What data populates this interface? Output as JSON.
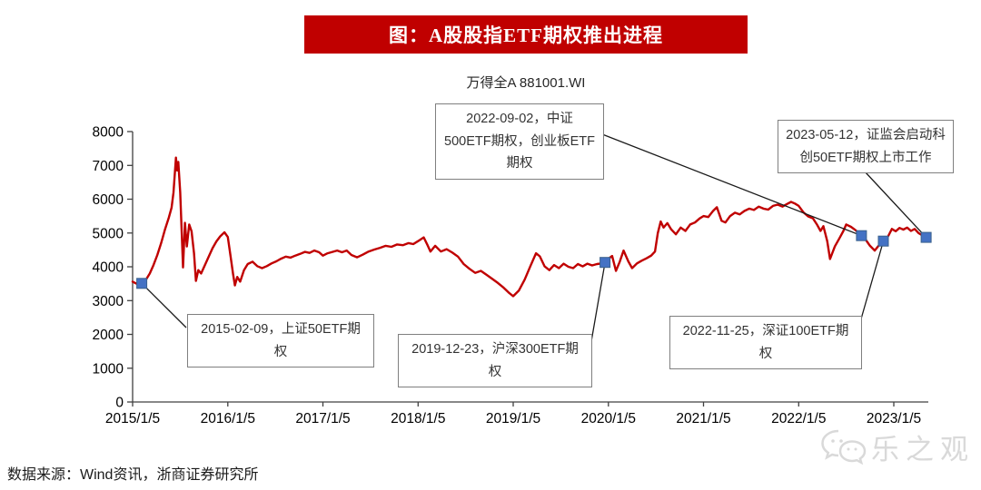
{
  "banner": {
    "title": "图：A股股指ETF期权推出进程",
    "bg_color": "#C00000",
    "text_color": "#FFFFFF"
  },
  "source_note": "数据来源：Wind资讯，浙商证券研究所",
  "watermark_text": "乐之观",
  "chart_data": {
    "type": "line",
    "title": "万得全A 881001.WI",
    "xlabel": "",
    "ylabel": "",
    "ylim": [
      0,
      8000
    ],
    "grid": false,
    "legend": "none",
    "line_color": "#C00000",
    "marker_color": "#4472C4",
    "marker_border_color": "#3A618C",
    "axis_color": "#404040",
    "yticks": [
      0,
      1000,
      2000,
      3000,
      4000,
      5000,
      6000,
      7000,
      8000
    ],
    "xticks": [
      "2015/1/5",
      "2016/1/5",
      "2017/1/5",
      "2018/1/5",
      "2019/1/5",
      "2020/1/5",
      "2021/1/5",
      "2022/1/5",
      "2023/1/5"
    ],
    "x_unit": "years since 2015/1/5",
    "series": [
      {
        "name": "万得全A 881001.WI",
        "color": "#C00000",
        "points": [
          [
            0.0,
            3560
          ],
          [
            0.04,
            3500
          ],
          [
            0.096,
            3510
          ],
          [
            0.14,
            3620
          ],
          [
            0.18,
            3800
          ],
          [
            0.22,
            4050
          ],
          [
            0.26,
            4350
          ],
          [
            0.3,
            4700
          ],
          [
            0.34,
            5100
          ],
          [
            0.38,
            5450
          ],
          [
            0.41,
            5750
          ],
          [
            0.43,
            6200
          ],
          [
            0.455,
            7230
          ],
          [
            0.468,
            6850
          ],
          [
            0.48,
            7100
          ],
          [
            0.5,
            6200
          ],
          [
            0.52,
            4700
          ],
          [
            0.53,
            3980
          ],
          [
            0.55,
            5300
          ],
          [
            0.57,
            4600
          ],
          [
            0.595,
            5250
          ],
          [
            0.62,
            5050
          ],
          [
            0.645,
            4400
          ],
          [
            0.665,
            3580
          ],
          [
            0.69,
            3900
          ],
          [
            0.72,
            3800
          ],
          [
            0.76,
            4050
          ],
          [
            0.8,
            4300
          ],
          [
            0.84,
            4550
          ],
          [
            0.88,
            4750
          ],
          [
            0.92,
            4900
          ],
          [
            0.965,
            5020
          ],
          [
            1.0,
            4880
          ],
          [
            1.03,
            4300
          ],
          [
            1.055,
            3800
          ],
          [
            1.075,
            3450
          ],
          [
            1.1,
            3700
          ],
          [
            1.13,
            3560
          ],
          [
            1.17,
            3900
          ],
          [
            1.21,
            4080
          ],
          [
            1.26,
            4150
          ],
          [
            1.31,
            4020
          ],
          [
            1.36,
            3960
          ],
          [
            1.41,
            4020
          ],
          [
            1.46,
            4100
          ],
          [
            1.51,
            4160
          ],
          [
            1.56,
            4240
          ],
          [
            1.61,
            4300
          ],
          [
            1.66,
            4270
          ],
          [
            1.71,
            4330
          ],
          [
            1.76,
            4380
          ],
          [
            1.81,
            4440
          ],
          [
            1.86,
            4410
          ],
          [
            1.91,
            4480
          ],
          [
            1.96,
            4430
          ],
          [
            2.0,
            4330
          ],
          [
            2.05,
            4400
          ],
          [
            2.1,
            4440
          ],
          [
            2.15,
            4480
          ],
          [
            2.2,
            4430
          ],
          [
            2.25,
            4480
          ],
          [
            2.3,
            4350
          ],
          [
            2.36,
            4280
          ],
          [
            2.42,
            4360
          ],
          [
            2.48,
            4450
          ],
          [
            2.54,
            4510
          ],
          [
            2.6,
            4560
          ],
          [
            2.66,
            4620
          ],
          [
            2.72,
            4590
          ],
          [
            2.78,
            4660
          ],
          [
            2.84,
            4640
          ],
          [
            2.9,
            4700
          ],
          [
            2.95,
            4670
          ],
          [
            3.0,
            4760
          ],
          [
            3.06,
            4870
          ],
          [
            3.1,
            4640
          ],
          [
            3.13,
            4450
          ],
          [
            3.18,
            4620
          ],
          [
            3.24,
            4450
          ],
          [
            3.3,
            4520
          ],
          [
            3.36,
            4420
          ],
          [
            3.42,
            4300
          ],
          [
            3.48,
            4080
          ],
          [
            3.54,
            3940
          ],
          [
            3.6,
            3820
          ],
          [
            3.66,
            3880
          ],
          [
            3.72,
            3760
          ],
          [
            3.78,
            3640
          ],
          [
            3.84,
            3520
          ],
          [
            3.9,
            3380
          ],
          [
            3.96,
            3220
          ],
          [
            4.0,
            3130
          ],
          [
            4.06,
            3300
          ],
          [
            4.12,
            3620
          ],
          [
            4.18,
            4020
          ],
          [
            4.24,
            4400
          ],
          [
            4.28,
            4310
          ],
          [
            4.33,
            4010
          ],
          [
            4.38,
            3900
          ],
          [
            4.43,
            4050
          ],
          [
            4.48,
            3960
          ],
          [
            4.53,
            4090
          ],
          [
            4.58,
            4000
          ],
          [
            4.63,
            3960
          ],
          [
            4.68,
            4080
          ],
          [
            4.73,
            4010
          ],
          [
            4.78,
            4090
          ],
          [
            4.83,
            4040
          ],
          [
            4.88,
            4080
          ],
          [
            4.93,
            4100
          ],
          [
            4.965,
            4130
          ],
          [
            5.0,
            4240
          ],
          [
            5.04,
            4320
          ],
          [
            5.08,
            3880
          ],
          [
            5.12,
            4150
          ],
          [
            5.16,
            4480
          ],
          [
            5.21,
            4160
          ],
          [
            5.25,
            3960
          ],
          [
            5.3,
            4100
          ],
          [
            5.35,
            4180
          ],
          [
            5.4,
            4250
          ],
          [
            5.45,
            4330
          ],
          [
            5.49,
            4450
          ],
          [
            5.52,
            5000
          ],
          [
            5.55,
            5340
          ],
          [
            5.58,
            5160
          ],
          [
            5.62,
            5290
          ],
          [
            5.66,
            5110
          ],
          [
            5.71,
            4960
          ],
          [
            5.76,
            5160
          ],
          [
            5.81,
            5060
          ],
          [
            5.86,
            5250
          ],
          [
            5.91,
            5310
          ],
          [
            5.96,
            5430
          ],
          [
            6.0,
            5500
          ],
          [
            6.05,
            5470
          ],
          [
            6.1,
            5650
          ],
          [
            6.14,
            5760
          ],
          [
            6.19,
            5360
          ],
          [
            6.23,
            5310
          ],
          [
            6.28,
            5500
          ],
          [
            6.33,
            5600
          ],
          [
            6.38,
            5550
          ],
          [
            6.43,
            5650
          ],
          [
            6.48,
            5720
          ],
          [
            6.53,
            5680
          ],
          [
            6.58,
            5780
          ],
          [
            6.63,
            5720
          ],
          [
            6.68,
            5690
          ],
          [
            6.73,
            5800
          ],
          [
            6.78,
            5840
          ],
          [
            6.83,
            5780
          ],
          [
            6.88,
            5860
          ],
          [
            6.92,
            5920
          ],
          [
            6.96,
            5870
          ],
          [
            7.0,
            5800
          ],
          [
            7.05,
            5610
          ],
          [
            7.1,
            5490
          ],
          [
            7.15,
            5430
          ],
          [
            7.19,
            5260
          ],
          [
            7.23,
            5060
          ],
          [
            7.26,
            5200
          ],
          [
            7.3,
            4760
          ],
          [
            7.33,
            4230
          ],
          [
            7.38,
            4600
          ],
          [
            7.43,
            4850
          ],
          [
            7.47,
            5060
          ],
          [
            7.5,
            5250
          ],
          [
            7.55,
            5180
          ],
          [
            7.6,
            5080
          ],
          [
            7.63,
            4990
          ],
          [
            7.66,
            4920
          ],
          [
            7.7,
            4820
          ],
          [
            7.75,
            4620
          ],
          [
            7.8,
            4480
          ],
          [
            7.84,
            4620
          ],
          [
            7.89,
            4760
          ],
          [
            7.94,
            4900
          ],
          [
            7.98,
            5120
          ],
          [
            8.02,
            5050
          ],
          [
            8.06,
            5150
          ],
          [
            8.1,
            5100
          ],
          [
            8.14,
            5160
          ],
          [
            8.18,
            5060
          ],
          [
            8.22,
            5120
          ],
          [
            8.26,
            5000
          ],
          [
            8.3,
            4930
          ],
          [
            8.34,
            4870
          ],
          [
            8.36,
            4900
          ]
        ]
      }
    ],
    "events": [
      {
        "date": "2015-02-09",
        "label": "2015-02-09，上证50ETF期权",
        "t": 0.096,
        "value": 3510
      },
      {
        "date": "2019-12-23",
        "label": "2019-12-23，沪深300ETF期权",
        "t": 4.965,
        "value": 4130
      },
      {
        "date": "2022-09-02",
        "label": "2022-09-02，中证500ETF期权，创业板ETF期权",
        "t": 7.66,
        "value": 4920
      },
      {
        "date": "2022-11-25",
        "label": "2022-11-25，深证100ETF期权",
        "t": 7.89,
        "value": 4760
      },
      {
        "date": "2023-05-12",
        "label": "2023-05-12，证监会启动科创50ETF期权上市工作",
        "t": 8.34,
        "value": 4870
      }
    ]
  }
}
